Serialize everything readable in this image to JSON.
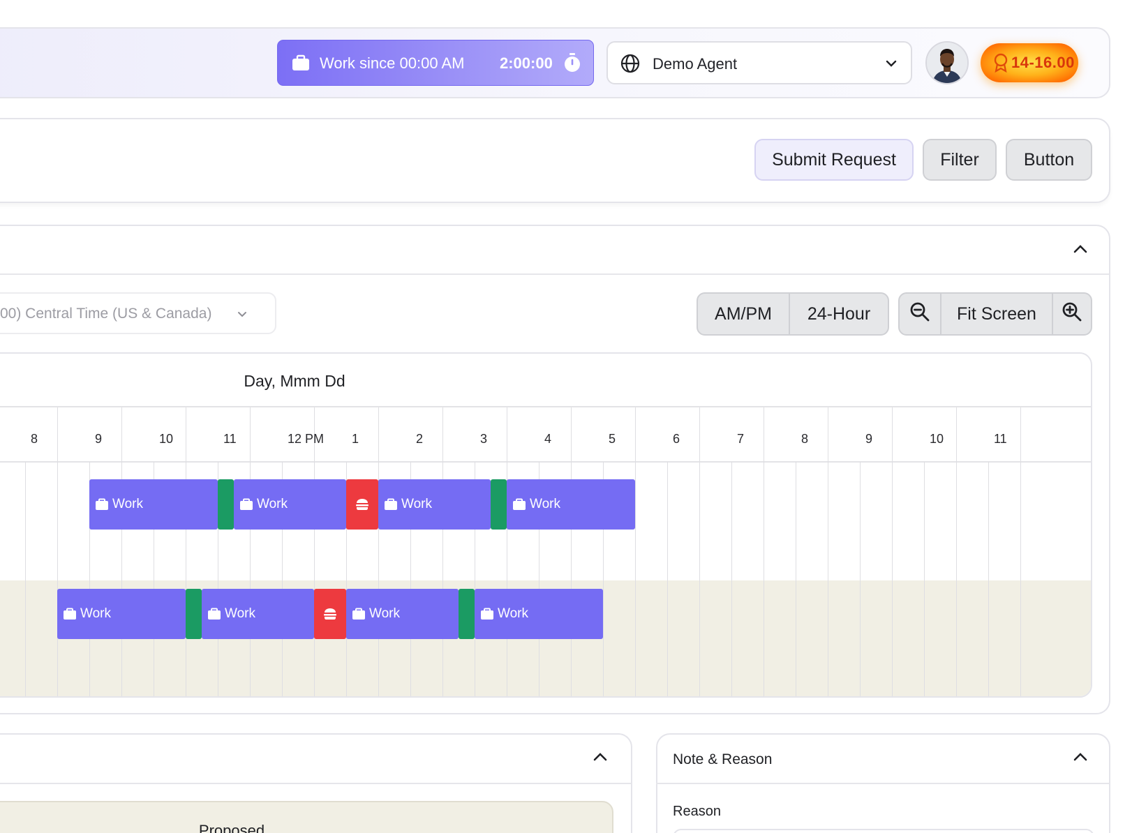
{
  "header": {
    "work_status": "Work since 00:00 AM",
    "work_timer": "2:00:00",
    "agent_name": "Demo Agent",
    "badge": "14-16.00"
  },
  "actions": {
    "submit": "Submit Request",
    "filter": "Filter",
    "button": "Button"
  },
  "schedule": {
    "timezone": "00) Central Time (US & Canada)",
    "format_ampm": "AM/PM",
    "format_24": "24-Hour",
    "fit_screen": "Fit Screen",
    "date_label": "Day, Mmm Dd",
    "hours": [
      "8",
      "9",
      "10",
      "11",
      "12 PM",
      "1",
      "2",
      "3",
      "4",
      "5",
      "6",
      "7",
      "8",
      "9",
      "10",
      "11"
    ],
    "work_label": "Work"
  },
  "bottom": {
    "proposed": "Proposed",
    "note_title": "Note & Reason",
    "reason_label": "Reason"
  },
  "colors": {
    "work": "#756cf3",
    "break": "#1b9b63",
    "lunch": "#ed3a3f"
  }
}
